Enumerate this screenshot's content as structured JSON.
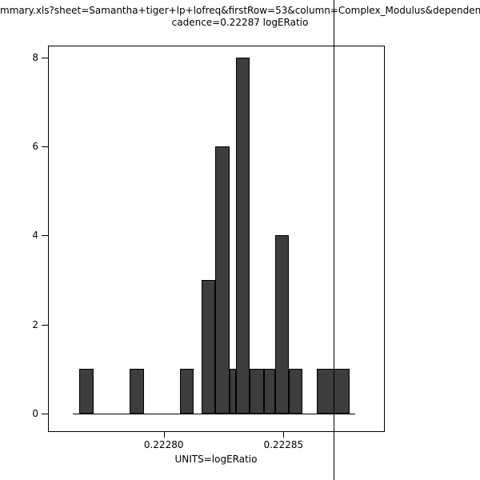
{
  "chart_data": {
    "type": "bar",
    "subtype": "histogram",
    "title": "mmary.xls?sheet=Samantha+tiger+lp+lofreq&firstRow=53&column=Complex_Modulus&dependen",
    "subtitle": "cadence=0.22287 logERatio",
    "xlabel": "UNITS=logERatio",
    "ylabel": "",
    "xlim": [
      0.222752,
      0.222892
    ],
    "ylim": [
      -0.4,
      8.25
    ],
    "grid": false,
    "legend": "none",
    "bar_color": "#3d3d3d",
    "outline_color": "#000000",
    "vline_x": 0.222871,
    "baseline": {
      "x0": 0.222762,
      "x1": 0.22288,
      "y": 0
    },
    "x_ticks": [
      {
        "value": 0.2228,
        "label": "0.22280"
      },
      {
        "value": 0.22285,
        "label": "0.22285"
      }
    ],
    "y_ticks": [
      {
        "value": 0,
        "label": "0"
      },
      {
        "value": 2,
        "label": "2"
      },
      {
        "value": 4,
        "label": "4"
      },
      {
        "value": 6,
        "label": "6"
      },
      {
        "value": 8,
        "label": "8"
      }
    ],
    "bins": [
      {
        "x0": 0.2227648,
        "x1": 0.2227706,
        "count": 1
      },
      {
        "x0": 0.2227858,
        "x1": 0.2227916,
        "count": 1
      },
      {
        "x0": 0.2228068,
        "x1": 0.2228126,
        "count": 1
      },
      {
        "x0": 0.2228158,
        "x1": 0.2228216,
        "count": 3
      },
      {
        "x0": 0.2228216,
        "x1": 0.2228274,
        "count": 6
      },
      {
        "x0": 0.2228274,
        "x1": 0.2228302,
        "count": 1
      },
      {
        "x0": 0.2228302,
        "x1": 0.222836,
        "count": 8
      },
      {
        "x0": 0.222836,
        "x1": 0.2228418,
        "count": 1
      },
      {
        "x0": 0.2228418,
        "x1": 0.2228464,
        "count": 1
      },
      {
        "x0": 0.2228464,
        "x1": 0.2228522,
        "count": 4
      },
      {
        "x0": 0.2228522,
        "x1": 0.222858,
        "count": 1
      },
      {
        "x0": 0.2228638,
        "x1": 0.2228778,
        "count": 1
      }
    ]
  }
}
